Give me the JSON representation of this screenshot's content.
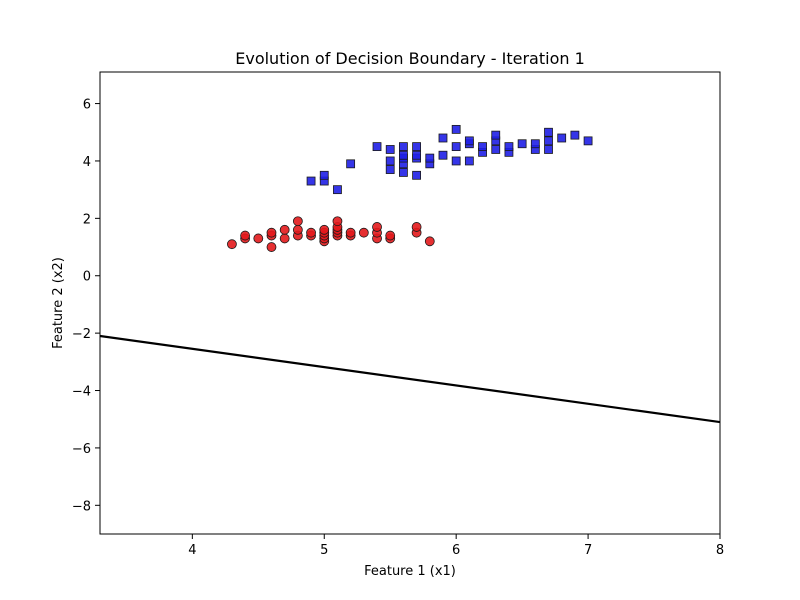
{
  "chart_data": {
    "type": "scatter",
    "title": "Evolution of Decision Boundary - Iteration 1",
    "xlabel": "Feature 1 (x1)",
    "ylabel": "Feature 2 (x2)",
    "xlim": [
      3.3,
      8.0
    ],
    "ylim": [
      -9.0,
      7.1
    ],
    "xticks": [
      4,
      5,
      6,
      7,
      8
    ],
    "yticks": [
      -8,
      -6,
      -4,
      -2,
      0,
      2,
      4,
      6
    ],
    "xtick_labels": [
      "4",
      "5",
      "6",
      "7",
      "8"
    ],
    "ytick_labels": [
      "−8",
      "−6",
      "−4",
      "−2",
      "0",
      "2",
      "4",
      "6"
    ],
    "grid": false,
    "series": [
      {
        "marker": "circle",
        "color": "#e31a1c",
        "points": [
          [
            4.3,
            1.1
          ],
          [
            4.4,
            1.3
          ],
          [
            4.4,
            1.4
          ],
          [
            4.5,
            1.3
          ],
          [
            4.6,
            1.0
          ],
          [
            4.6,
            1.4
          ],
          [
            4.6,
            1.5
          ],
          [
            4.7,
            1.3
          ],
          [
            4.7,
            1.6
          ],
          [
            4.8,
            1.4
          ],
          [
            4.8,
            1.6
          ],
          [
            4.8,
            1.9
          ],
          [
            4.9,
            1.4
          ],
          [
            4.9,
            1.5
          ],
          [
            5.0,
            1.2
          ],
          [
            5.0,
            1.3
          ],
          [
            5.0,
            1.4
          ],
          [
            5.0,
            1.5
          ],
          [
            5.0,
            1.6
          ],
          [
            5.1,
            1.4
          ],
          [
            5.1,
            1.5
          ],
          [
            5.1,
            1.6
          ],
          [
            5.1,
            1.7
          ],
          [
            5.1,
            1.9
          ],
          [
            5.2,
            1.4
          ],
          [
            5.2,
            1.5
          ],
          [
            5.3,
            1.5
          ],
          [
            5.4,
            1.3
          ],
          [
            5.4,
            1.5
          ],
          [
            5.4,
            1.7
          ],
          [
            5.5,
            1.3
          ],
          [
            5.5,
            1.4
          ],
          [
            5.7,
            1.5
          ],
          [
            5.7,
            1.7
          ],
          [
            5.8,
            1.2
          ]
        ]
      },
      {
        "marker": "square",
        "color": "#1f1fe6",
        "points": [
          [
            4.9,
            3.3
          ],
          [
            5.0,
            3.3
          ],
          [
            5.0,
            3.5
          ],
          [
            5.1,
            3.0
          ],
          [
            5.2,
            3.9
          ],
          [
            5.4,
            4.5
          ],
          [
            5.5,
            3.7
          ],
          [
            5.5,
            4.0
          ],
          [
            5.5,
            4.4
          ],
          [
            5.6,
            3.6
          ],
          [
            5.6,
            3.9
          ],
          [
            5.6,
            4.1
          ],
          [
            5.6,
            4.2
          ],
          [
            5.6,
            4.5
          ],
          [
            5.7,
            3.5
          ],
          [
            5.7,
            4.1
          ],
          [
            5.7,
            4.2
          ],
          [
            5.7,
            4.5
          ],
          [
            5.8,
            3.9
          ],
          [
            5.8,
            4.1
          ],
          [
            5.9,
            4.2
          ],
          [
            5.9,
            4.8
          ],
          [
            6.0,
            4.0
          ],
          [
            6.0,
            4.5
          ],
          [
            6.0,
            5.1
          ],
          [
            6.1,
            4.0
          ],
          [
            6.1,
            4.6
          ],
          [
            6.1,
            4.7
          ],
          [
            6.2,
            4.3
          ],
          [
            6.2,
            4.5
          ],
          [
            6.3,
            4.4
          ],
          [
            6.3,
            4.7
          ],
          [
            6.3,
            4.9
          ],
          [
            6.4,
            4.3
          ],
          [
            6.4,
            4.5
          ],
          [
            6.5,
            4.6
          ],
          [
            6.6,
            4.4
          ],
          [
            6.6,
            4.6
          ],
          [
            6.7,
            4.4
          ],
          [
            6.7,
            4.7
          ],
          [
            6.7,
            5.0
          ],
          [
            6.8,
            4.8
          ],
          [
            6.9,
            4.9
          ],
          [
            7.0,
            4.7
          ]
        ]
      }
    ],
    "boundary_line": {
      "color": "#000000",
      "points": [
        [
          3.3,
          -2.1
        ],
        [
          8.0,
          -5.1
        ]
      ]
    }
  }
}
